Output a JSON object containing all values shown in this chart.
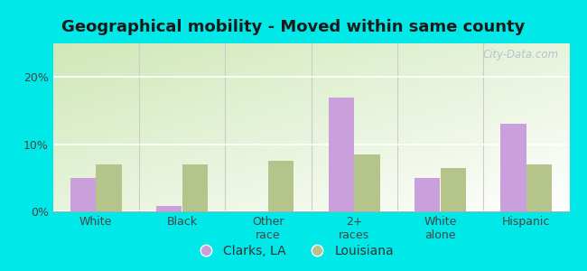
{
  "title": "Geographical mobility - Moved within same county",
  "categories": [
    "White",
    "Black",
    "Other\nrace",
    "2+\nraces",
    "White\nalone",
    "Hispanic"
  ],
  "clarks_values": [
    5.0,
    0.8,
    0.0,
    17.0,
    5.0,
    13.0
  ],
  "louisiana_values": [
    7.0,
    7.0,
    7.5,
    8.5,
    6.5,
    7.0
  ],
  "clarks_color": "#c9a0dc",
  "louisiana_color": "#b5c48a",
  "background_color": "#00e8e8",
  "plot_bg_color_topleft": "#d8edcc",
  "plot_bg_color_topright": "#e8f5e0",
  "plot_bg_color_bottomright": "#ffffff",
  "ylim": [
    0,
    25
  ],
  "yticks": [
    0,
    10,
    20
  ],
  "ytick_labels": [
    "0%",
    "10%",
    "20%"
  ],
  "bar_width": 0.3,
  "legend_labels": [
    "Clarks, LA",
    "Louisiana"
  ],
  "watermark": "City-Data.com",
  "title_fontsize": 13,
  "tick_fontsize": 9,
  "legend_fontsize": 10
}
